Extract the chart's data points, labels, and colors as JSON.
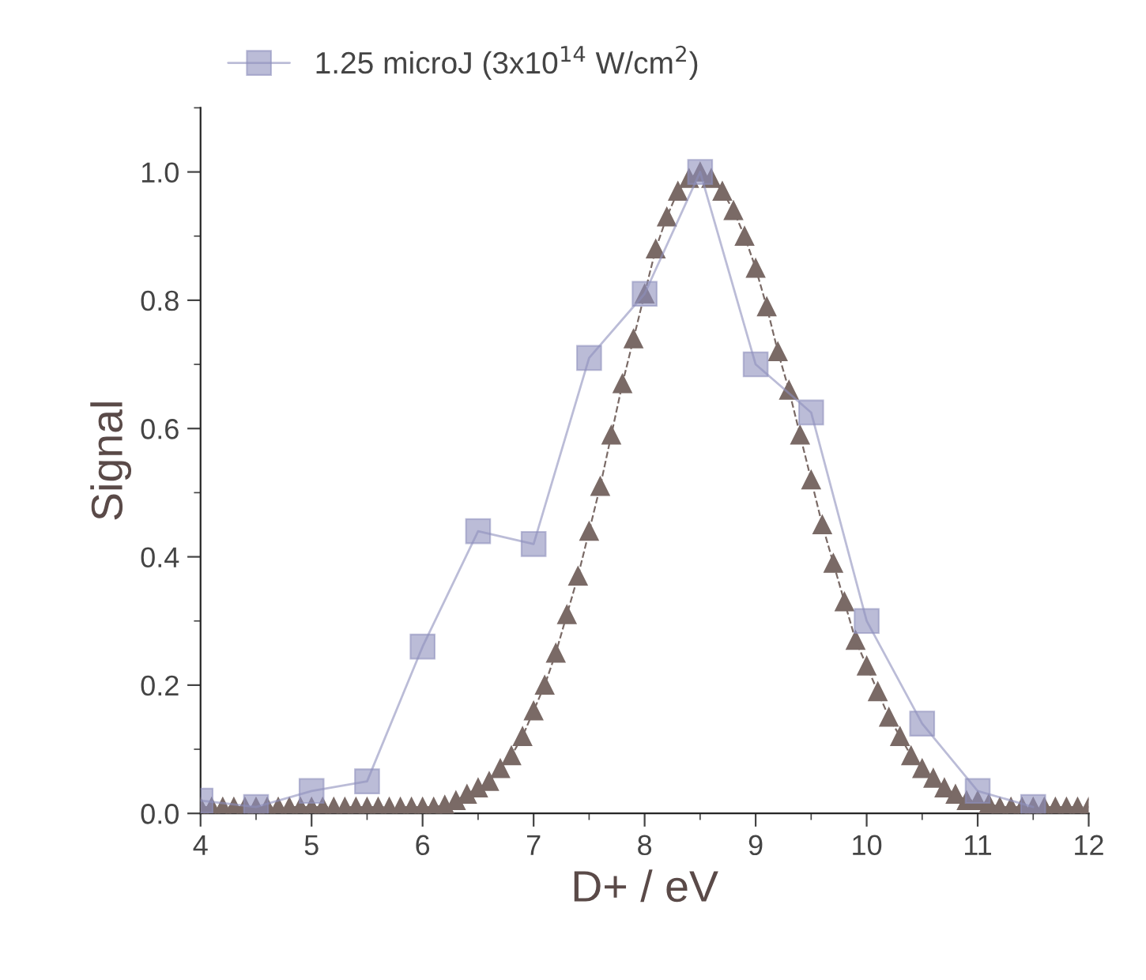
{
  "chart_data": {
    "type": "line",
    "xlabel": "D+ / eV",
    "ylabel": "Signal",
    "xlim": [
      4,
      12
    ],
    "xticks": [
      4,
      5,
      6,
      7,
      8,
      9,
      10,
      11,
      12
    ],
    "ylim": [
      0,
      1.1
    ],
    "yticks": [
      {
        "value": 0,
        "label": "0.0"
      },
      0.2,
      0.4,
      0.6,
      0.8,
      {
        "value": 1,
        "label": "1.0"
      }
    ],
    "grid": false,
    "legend": "top",
    "series": [
      {
        "name": "1.25 microJ (3x10$^{14}$ W/cm$^{2}$)",
        "color": "#8e8fbd",
        "marker": "square",
        "line_style": "solid",
        "x": [
          4,
          4.5,
          5,
          5.5,
          6,
          6.5,
          7,
          7.5,
          8,
          8.5,
          9,
          9.5,
          10,
          10.5,
          11,
          11.5
        ],
        "values": [
          0.02,
          0.01,
          0.035,
          0.05,
          0.26,
          0.44,
          0.42,
          0.71,
          0.81,
          1.0,
          0.7,
          0.625,
          0.3,
          0.14,
          0.035,
          0.01
        ]
      },
      {
        "color": "#7a6a66",
        "marker": "triangle",
        "line_style": "dashed",
        "x": [
          4,
          4.1,
          4.2,
          4.3,
          4.4,
          4.5,
          4.6,
          4.7,
          4.8,
          4.9,
          5,
          5.1,
          5.2,
          5.3,
          5.4,
          5.5,
          5.6,
          5.7,
          5.8,
          5.9,
          6,
          6.1,
          6.2,
          6.3,
          6.4,
          6.5,
          6.6,
          6.7,
          6.8,
          6.9,
          7,
          7.1,
          7.2,
          7.3,
          7.4,
          7.5,
          7.6,
          7.7,
          7.8,
          7.9,
          8,
          8.1,
          8.2,
          8.3,
          8.4,
          8.5,
          8.6,
          8.7,
          8.8,
          8.9,
          9,
          9.1,
          9.2,
          9.3,
          9.4,
          9.5,
          9.6,
          9.7,
          9.8,
          9.9,
          10,
          10.1,
          10.2,
          10.3,
          10.4,
          10.5,
          10.6,
          10.7,
          10.8,
          10.9,
          11,
          11.1,
          11.2,
          11.3,
          11.4,
          11.5,
          11.6,
          11.7,
          11.8,
          11.9,
          12
        ],
        "values": [
          0.01,
          0.01,
          0.01,
          0.01,
          0.01,
          0.01,
          0.01,
          0.01,
          0.01,
          0.01,
          0.01,
          0.01,
          0.01,
          0.01,
          0.01,
          0.01,
          0.01,
          0.01,
          0.01,
          0.01,
          0.01,
          0.01,
          0.013,
          0.02,
          0.03,
          0.04,
          0.05,
          0.07,
          0.09,
          0.12,
          0.16,
          0.2,
          0.25,
          0.31,
          0.37,
          0.44,
          0.51,
          0.59,
          0.67,
          0.74,
          0.81,
          0.88,
          0.93,
          0.97,
          0.99,
          1.0,
          0.99,
          0.97,
          0.94,
          0.9,
          0.85,
          0.79,
          0.72,
          0.66,
          0.59,
          0.52,
          0.45,
          0.39,
          0.33,
          0.27,
          0.23,
          0.19,
          0.15,
          0.12,
          0.09,
          0.07,
          0.055,
          0.04,
          0.03,
          0.02,
          0.02,
          0.015,
          0.01,
          0.01,
          0.01,
          0.01,
          0.01,
          0.01,
          0.01,
          0.01,
          0.01
        ]
      }
    ]
  }
}
